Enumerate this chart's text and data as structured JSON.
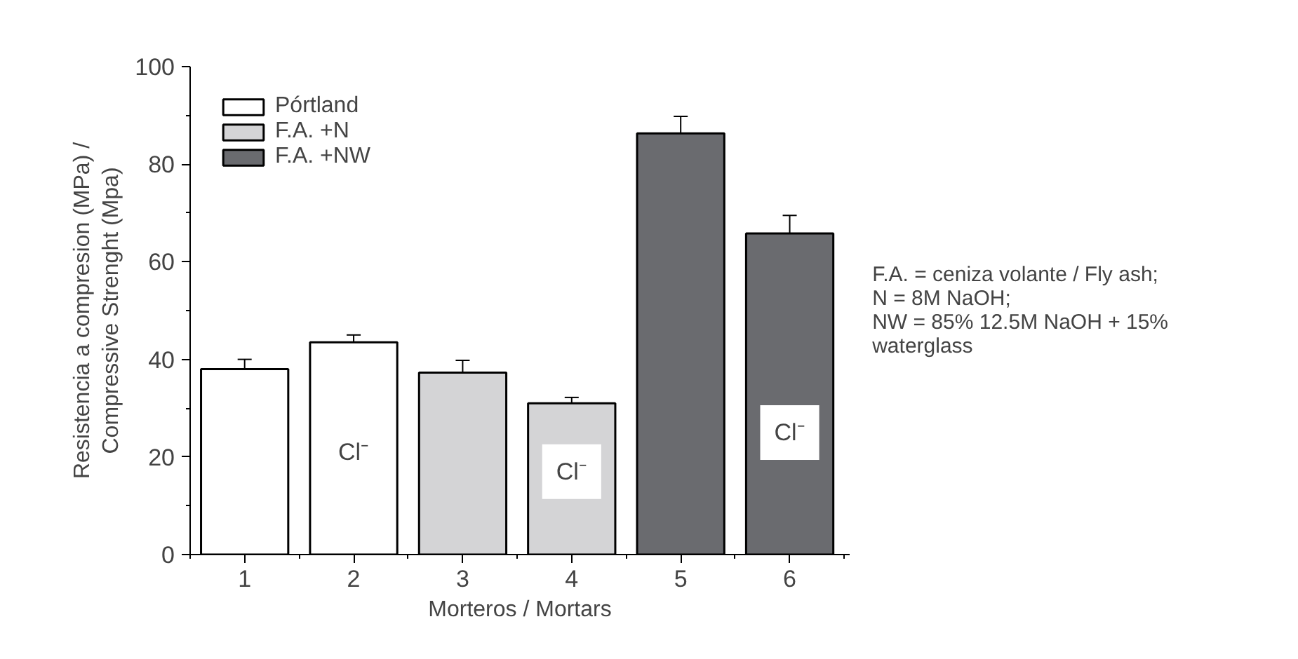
{
  "chart_data": {
    "type": "bar",
    "xlabel": "Morteros / Mortars",
    "ylabel": "Resistencia a compresion (MPa) /\nCompressive Strenght (Mpa)",
    "categories": [
      "1",
      "2",
      "3",
      "4",
      "5",
      "6"
    ],
    "series": [
      {
        "name": "Pórtland",
        "color": "#ffffff",
        "values": [
          38,
          43.5,
          null,
          null,
          null,
          null
        ],
        "errors": [
          2,
          1.5,
          null,
          null,
          null,
          null
        ]
      },
      {
        "name": "F.A. +N",
        "color": "#d4d4d6",
        "values": [
          null,
          null,
          37.3,
          31,
          null,
          null
        ],
        "errors": [
          null,
          null,
          2.5,
          1.2,
          null,
          null
        ]
      },
      {
        "name": "F.A. +NW",
        "color": "#6a6b6f",
        "values": [
          null,
          null,
          null,
          null,
          86.3,
          65.8
        ],
        "errors": [
          null,
          null,
          null,
          null,
          3.5,
          3.7
        ]
      }
    ],
    "ylim": [
      0,
      100
    ],
    "yticks": [
      0,
      20,
      40,
      60,
      80,
      100
    ],
    "grid": false,
    "legend": "top left",
    "annotations": [
      {
        "text": "Cl⁻",
        "x": "2",
        "y": 21
      },
      {
        "text": "Cl⁻",
        "x": "4",
        "y": 17
      },
      {
        "text": "Cl⁻",
        "x": "6",
        "y": 25
      },
      "F.A. = ceniza volante / Fly ash;\nN = 8M NaOH;\nNW = 85% 12.5M NaOH + 15%\nwaterglass"
    ]
  }
}
